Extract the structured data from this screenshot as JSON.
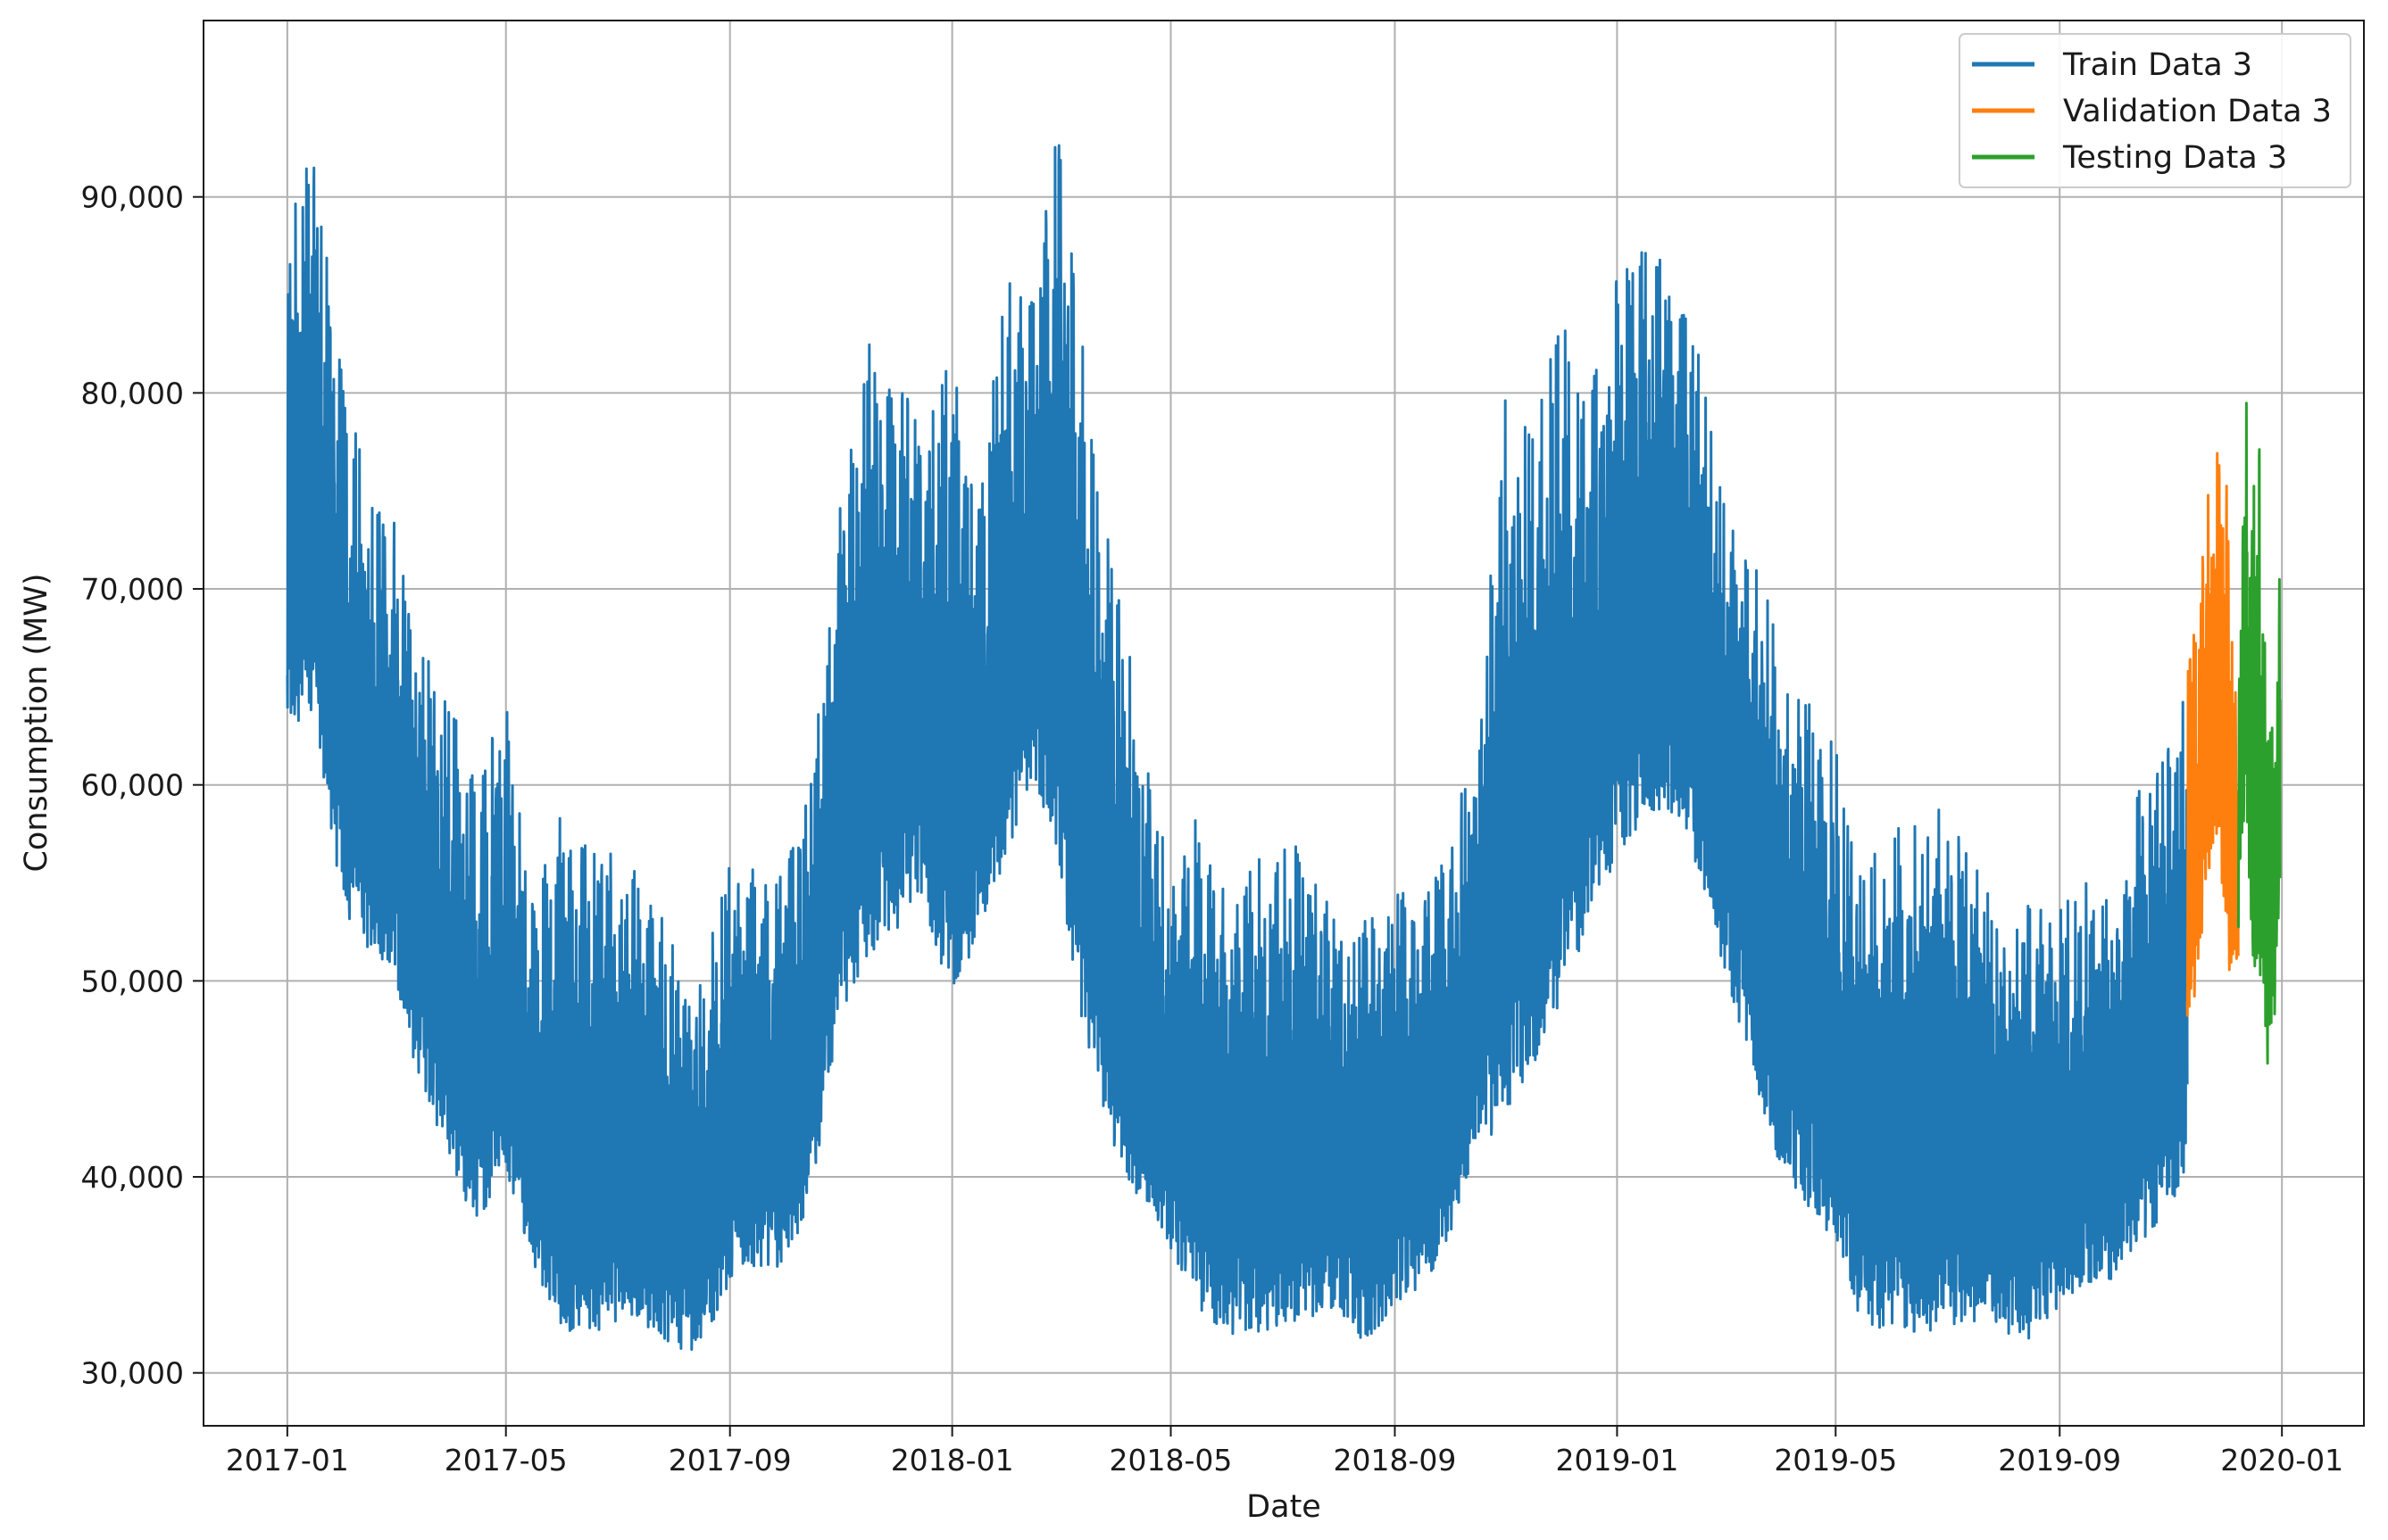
{
  "chart_data": {
    "type": "line",
    "title": "",
    "xlabel": "Date",
    "ylabel": "Consumption (MW)",
    "xlim": [
      "2016-11-16",
      "2020-02-15"
    ],
    "ylim": [
      27300,
      99000
    ],
    "grid": true,
    "legend_position": "top-right",
    "x_ticks": [
      "2017-01",
      "2017-05",
      "2017-09",
      "2018-01",
      "2018-05",
      "2018-09",
      "2019-01",
      "2019-05",
      "2019-09",
      "2020-01"
    ],
    "y_ticks": [
      30000,
      40000,
      50000,
      60000,
      70000,
      80000,
      90000
    ],
    "y_tick_labels": [
      "30,000",
      "40,000",
      "50,000",
      "60,000",
      "70,000",
      "80,000",
      "90,000"
    ],
    "series": [
      {
        "name": "Train Data 3",
        "color": "#1f77b4",
        "start": "2017-01-01",
        "end": "2019-11-10",
        "x": [
          "2017-01-01",
          "2017-01-15",
          "2017-02-01",
          "2017-02-15",
          "2017-03-01",
          "2017-03-15",
          "2017-04-01",
          "2017-04-15",
          "2017-05-01",
          "2017-05-15",
          "2017-06-01",
          "2017-06-15",
          "2017-07-01",
          "2017-07-15",
          "2017-08-01",
          "2017-08-15",
          "2017-09-01",
          "2017-09-15",
          "2017-10-01",
          "2017-10-15",
          "2017-11-01",
          "2017-11-15",
          "2017-12-01",
          "2017-12-15",
          "2018-01-01",
          "2018-01-15",
          "2018-02-01",
          "2018-02-15",
          "2018-03-01",
          "2018-03-15",
          "2018-04-01",
          "2018-04-15",
          "2018-05-01",
          "2018-05-15",
          "2018-06-01",
          "2018-06-15",
          "2018-07-01",
          "2018-07-15",
          "2018-08-01",
          "2018-08-15",
          "2018-09-01",
          "2018-09-15",
          "2018-10-01",
          "2018-10-15",
          "2018-11-01",
          "2018-11-15",
          "2018-12-01",
          "2018-12-15",
          "2019-01-01",
          "2019-01-15",
          "2019-02-01",
          "2019-02-15",
          "2019-03-01",
          "2019-03-15",
          "2019-04-01",
          "2019-04-15",
          "2019-05-01",
          "2019-05-15",
          "2019-06-01",
          "2019-06-15",
          "2019-07-01",
          "2019-07-15",
          "2019-08-01",
          "2019-08-15",
          "2019-09-01",
          "2019-09-15",
          "2019-10-01",
          "2019-10-15",
          "2019-11-01",
          "2019-11-10"
        ],
        "upper": [
          88000,
          94000,
          81000,
          75000,
          74000,
          67000,
          65000,
          60000,
          65000,
          54000,
          59000,
          57000,
          57000,
          56000,
          52000,
          50000,
          56000,
          56000,
          56000,
          60000,
          75000,
          83000,
          82000,
          78000,
          82000,
          74000,
          88000,
          85000,
          96000,
          81000,
          71000,
          64000,
          55000,
          59000,
          54000,
          56000,
          57000,
          57000,
          53000,
          53000,
          55000,
          55000,
          57000,
          63000,
          80000,
          78000,
          84000,
          80000,
          86000,
          88000,
          86000,
          82000,
          75000,
          72000,
          68000,
          65000,
          62000,
          56000,
          58000,
          58000,
          59000,
          57000,
          52000,
          54000,
          54000,
          55000,
          55000,
          60000,
          62000,
          66000
        ],
        "lower": [
          62000,
          63000,
          53000,
          51000,
          50000,
          44000,
          40000,
          37000,
          40000,
          35000,
          31500,
          31500,
          32000,
          32000,
          31000,
          30500,
          34000,
          35000,
          35000,
          38000,
          48000,
          50000,
          52000,
          54000,
          48000,
          52000,
          56000,
          60000,
          54000,
          46000,
          40000,
          38000,
          36000,
          33000,
          31500,
          31500,
          32000,
          32000,
          33000,
          31000,
          33000,
          34000,
          36000,
          41000,
          42000,
          45000,
          48000,
          52000,
          55000,
          58000,
          58000,
          55000,
          50000,
          45000,
          40000,
          38000,
          36000,
          32000,
          31500,
          31500,
          32000,
          32000,
          31500,
          31000,
          33000,
          34000,
          34000,
          36000,
          38000,
          40000
        ]
      },
      {
        "name": "Validation Data 3",
        "color": "#ff7f0e",
        "start": "2019-11-10",
        "end": "2019-12-08",
        "x": [
          "2019-11-10",
          "2019-11-15",
          "2019-11-20",
          "2019-11-25",
          "2019-11-30",
          "2019-12-04",
          "2019-12-08"
        ],
        "upper": [
          66000,
          69000,
          74000,
          78000,
          79000,
          70000,
          67000
        ],
        "lower": [
          47000,
          49000,
          54000,
          57000,
          54000,
          49000,
          50000
        ]
      },
      {
        "name": "Testing Data 3",
        "color": "#2ca02c",
        "start": "2019-12-08",
        "end": "2019-12-31",
        "x": [
          "2019-12-08",
          "2019-12-12",
          "2019-12-16",
          "2019-12-20",
          "2019-12-24",
          "2019-12-28",
          "2019-12-31"
        ],
        "upper": [
          66000,
          80500,
          75000,
          78000,
          65000,
          64000,
          72500
        ],
        "lower": [
          52000,
          58000,
          50000,
          49000,
          45000,
          48000,
          53000
        ]
      }
    ]
  }
}
